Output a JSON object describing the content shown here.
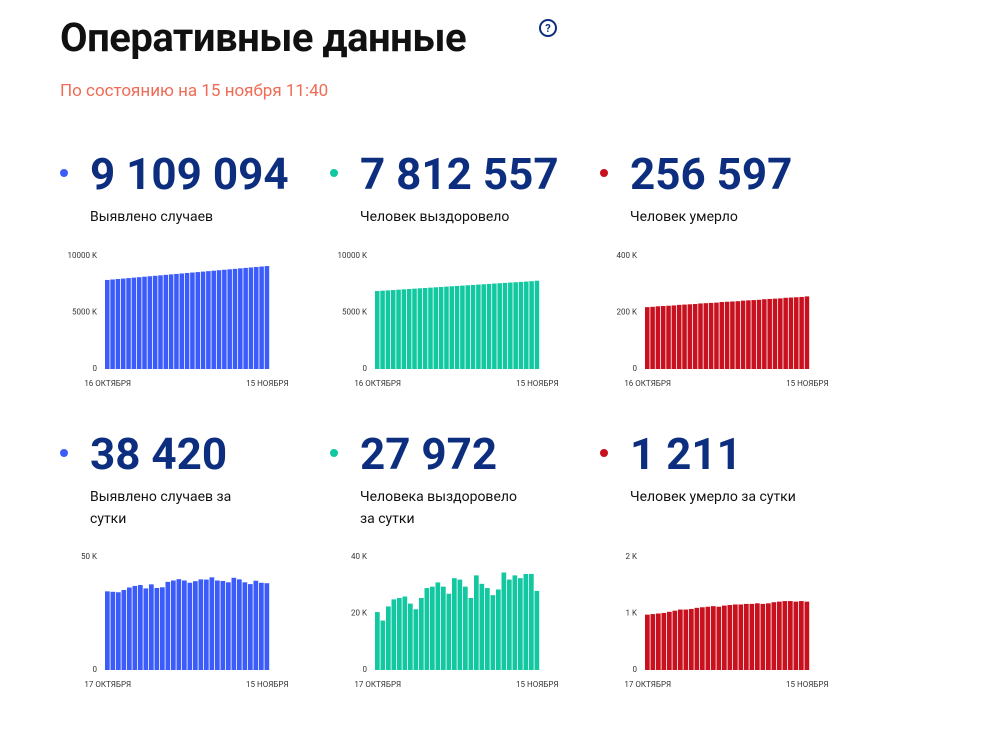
{
  "header": {
    "title": "Оперативные данные",
    "subtitle": "По состоянию на 15 ноября 11:40"
  },
  "chart_data": [
    {
      "type": "bar",
      "figure": "9 109 094",
      "label": "Выявлено случаев",
      "color": "#3b5bfb",
      "categories": [
        "16 ОКТЯБРЯ",
        null,
        null,
        null,
        null,
        null,
        null,
        null,
        null,
        null,
        null,
        null,
        null,
        null,
        null,
        null,
        null,
        null,
        null,
        null,
        null,
        null,
        null,
        null,
        null,
        null,
        null,
        null,
        null,
        null,
        "15 НОЯБРЯ"
      ],
      "values": [
        7880,
        7921,
        7962,
        8003,
        8044,
        8085,
        8126,
        8167,
        8208,
        8249,
        8290,
        8331,
        8372,
        8413,
        8454,
        8495,
        8536,
        8577,
        8618,
        8659,
        8700,
        8741,
        8782,
        8823,
        8864,
        8905,
        8946,
        8987,
        9028,
        9069,
        9109
      ],
      "ylim": [
        0,
        10000
      ],
      "yticks": [
        0,
        {
          "value": 5000,
          "label": "5000 K"
        },
        {
          "value": 10000,
          "label": "10000 K"
        }
      ]
    },
    {
      "type": "bar",
      "figure": "7 812 557",
      "label": "Человек выздоровело",
      "color": "#12c8a0",
      "categories": [
        "16 ОКТЯБРЯ",
        null,
        null,
        null,
        null,
        null,
        null,
        null,
        null,
        null,
        null,
        null,
        null,
        null,
        null,
        null,
        null,
        null,
        null,
        null,
        null,
        null,
        null,
        null,
        null,
        null,
        null,
        null,
        null,
        null,
        "15 НОЯБРЯ"
      ],
      "values": [
        6900,
        6930,
        6960,
        6990,
        7020,
        7050,
        7080,
        7110,
        7140,
        7170,
        7200,
        7230,
        7260,
        7290,
        7320,
        7350,
        7380,
        7410,
        7440,
        7470,
        7500,
        7530,
        7560,
        7590,
        7620,
        7650,
        7680,
        7710,
        7740,
        7770,
        7813
      ],
      "ylim": [
        0,
        10000
      ],
      "yticks": [
        0,
        {
          "value": 5000,
          "label": "5000 K"
        },
        {
          "value": 10000,
          "label": "10000 K"
        }
      ]
    },
    {
      "type": "bar",
      "figure": "256 597",
      "label": "Человек умерло",
      "color": "#c8101e",
      "categories": [
        "16 ОКТЯБРЯ",
        null,
        null,
        null,
        null,
        null,
        null,
        null,
        null,
        null,
        null,
        null,
        null,
        null,
        null,
        null,
        null,
        null,
        null,
        null,
        null,
        null,
        null,
        null,
        null,
        null,
        null,
        null,
        null,
        null,
        "15 НОЯБРЯ"
      ],
      "values": [
        219,
        220,
        222,
        223,
        224,
        225,
        227,
        228,
        229,
        230,
        232,
        233,
        234,
        235,
        237,
        238,
        239,
        240,
        242,
        243,
        244,
        245,
        247,
        248,
        249,
        250,
        252,
        253,
        254,
        255,
        257
      ],
      "ylim": [
        0,
        400
      ],
      "yticks": [
        0,
        {
          "value": 200,
          "label": "200 K"
        },
        {
          "value": 400,
          "label": "400 K"
        }
      ]
    },
    {
      "type": "bar",
      "figure": "38 420",
      "label": "Выявлено случаев за сутки",
      "color": "#3b5bfb",
      "categories": [
        "17 ОКТЯБРЯ",
        null,
        null,
        null,
        null,
        null,
        null,
        null,
        null,
        null,
        null,
        null,
        null,
        null,
        null,
        null,
        null,
        null,
        null,
        null,
        null,
        null,
        null,
        null,
        null,
        null,
        null,
        null,
        null,
        "15 НОЯБРЯ"
      ],
      "values": [
        34.8,
        34.6,
        34.4,
        35.4,
        36.5,
        37.2,
        37.6,
        36.1,
        37.9,
        36.3,
        36.6,
        39.0,
        39.6,
        40.2,
        39.6,
        38.6,
        39.3,
        40.1,
        40.0,
        41.0,
        39.6,
        39.4,
        38.8,
        40.8,
        40.1,
        38.8,
        38.0,
        39.5,
        38.6,
        38.4
      ],
      "ylim": [
        0,
        50
      ],
      "yticks": [
        0,
        {
          "value": 50,
          "label": "50 K"
        }
      ]
    },
    {
      "type": "bar",
      "figure": "27 972",
      "label": "Человека выздоровело за сутки",
      "color": "#12c8a0",
      "categories": [
        "17 ОКТЯБРЯ",
        null,
        null,
        null,
        null,
        null,
        null,
        null,
        null,
        null,
        null,
        null,
        null,
        null,
        null,
        null,
        null,
        null,
        null,
        null,
        null,
        null,
        null,
        null,
        null,
        null,
        null,
        null,
        null,
        "15 НОЯБРЯ"
      ],
      "values": [
        20.5,
        17.5,
        22.5,
        25.0,
        25.5,
        26.0,
        23.5,
        21.5,
        25.5,
        29.0,
        29.5,
        31.0,
        29.5,
        27.0,
        32.5,
        32.0,
        29.5,
        25.5,
        33.5,
        30.5,
        29.0,
        26.5,
        28.5,
        34.5,
        32.0,
        33.5,
        32.5,
        34.0,
        34.0,
        28.0
      ],
      "ylim": [
        0,
        40
      ],
      "yticks": [
        0,
        {
          "value": 20,
          "label": "20 K"
        },
        {
          "value": 40,
          "label": "40 K"
        }
      ]
    },
    {
      "type": "bar",
      "figure": "1 211",
      "label": "Человек умерло за сутки",
      "color": "#c8101e",
      "categories": [
        "17 ОКТЯБРЯ",
        null,
        null,
        null,
        null,
        null,
        null,
        null,
        null,
        null,
        null,
        null,
        null,
        null,
        null,
        null,
        null,
        null,
        null,
        null,
        null,
        null,
        null,
        null,
        null,
        null,
        null,
        null,
        null,
        "15 НОЯБРЯ"
      ],
      "values": [
        0.98,
        0.99,
        1.0,
        1.01,
        1.03,
        1.05,
        1.07,
        1.07,
        1.08,
        1.1,
        1.11,
        1.12,
        1.13,
        1.12,
        1.14,
        1.15,
        1.16,
        1.16,
        1.17,
        1.17,
        1.18,
        1.17,
        1.18,
        1.2,
        1.21,
        1.22,
        1.22,
        1.21,
        1.22,
        1.21
      ],
      "ylim": [
        0,
        2
      ],
      "yticks": [
        0,
        {
          "value": 1,
          "label": "1 K"
        },
        {
          "value": 2,
          "label": "2 K"
        }
      ]
    }
  ]
}
